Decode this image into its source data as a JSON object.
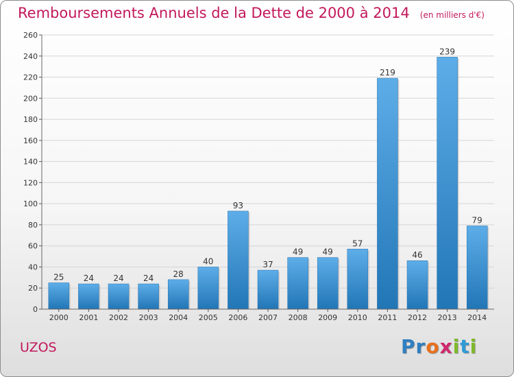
{
  "chart_data": {
    "type": "bar",
    "title": "Remboursements Annuels de la Dette de 2000 à 2014",
    "unit_note": "(en milliers d'€)",
    "categories": [
      "2000",
      "2001",
      "2002",
      "2003",
      "2004",
      "2005",
      "2006",
      "2007",
      "2008",
      "2009",
      "2010",
      "2011",
      "2012",
      "2013",
      "2014"
    ],
    "values": [
      25,
      24,
      24,
      24,
      28,
      40,
      93,
      37,
      49,
      49,
      57,
      219,
      46,
      239,
      79
    ],
    "ylim": [
      0,
      260
    ],
    "yticks": [
      0,
      20,
      40,
      60,
      80,
      100,
      120,
      140,
      160,
      180,
      200,
      220,
      240,
      260
    ],
    "grid": true,
    "bar_color": "#3d95d8"
  },
  "footer": {
    "commune": "UZOS",
    "logo_letters": [
      {
        "ch": "P",
        "color": "#2f7fc1"
      },
      {
        "ch": "r",
        "color": "#2f7fc1"
      },
      {
        "ch": "o",
        "color": "#e8701e"
      },
      {
        "ch": "x",
        "color": "#cf2a6d"
      },
      {
        "ch": "i",
        "color": "#7fba2a"
      },
      {
        "ch": "t",
        "color": "#2f9ad6"
      },
      {
        "ch": "i",
        "color": "#7fba2a"
      }
    ]
  }
}
